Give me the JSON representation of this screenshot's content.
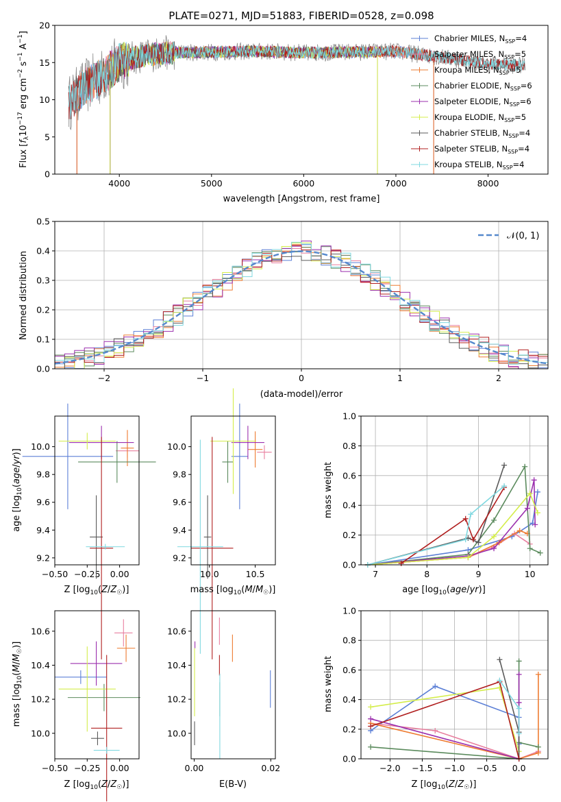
{
  "figure": {
    "title": "PLATE=0271, MJD=51883, FIBERID=0528, z=0.098"
  },
  "colors": {
    "chabrier_miles": "#5b7fd6",
    "salpeter_miles": "#e87e9e",
    "kroupa_miles": "#ee7b30",
    "chabrier_elodie": "#5a8a5c",
    "salpeter_elodie": "#9b2fae",
    "kroupa_elodie": "#d4ed4a",
    "chabrier_stelib": "#5a5a5a",
    "salpeter_stelib": "#b01f1f",
    "kroupa_stelib": "#7fd8e0",
    "normal": "#5588cc",
    "grid": "#b0b0b0",
    "spectrum": "#8a8a8a"
  },
  "chart_data": [
    {
      "id": "spectrum",
      "type": "line",
      "xlabel": "wavelength [Angstrom, rest frame]",
      "ylabel": "Flux [fλ10⁻¹⁷ erg cm⁻² s⁻¹ A⁻¹]",
      "xlim": [
        3300,
        8650
      ],
      "ylim": [
        0,
        20
      ],
      "xticks": [
        4000,
        5000,
        6000,
        7000,
        8000
      ],
      "yticks": [
        0,
        5,
        10,
        15,
        20
      ],
      "grid": false,
      "legend_position": "top-right",
      "legend": [
        "Chabrier MILES, N_SSP=4",
        "Salpeter MILES, N_SSP=5",
        "Kroupa MILES, N_SSP=5",
        "Chabrier ELODIE, N_SSP=6",
        "Salpeter ELODIE, N_SSP=6",
        "Kroupa ELODIE, N_SSP=5",
        "Chabrier STELIB, N_SSP=4",
        "Salpeter STELIB, N_SSP=4",
        "Kroupa STELIB, N_SSP=4"
      ],
      "legend_main": [
        "Chabrier MILES, N",
        "Salpeter MILES, N",
        "Kroupa MILES, N",
        "Chabrier ELODIE, N",
        "Salpeter ELODIE, N",
        "Kroupa ELODIE, N",
        "Chabrier STELIB, N",
        "Salpeter STELIB, N",
        "Kroupa STELIB, N"
      ],
      "legend_sub": [
        "SSP",
        "SSP",
        "SSP",
        "SSP",
        "SSP",
        "SSP",
        "SSP",
        "SSP",
        "SSP"
      ],
      "legend_tail": [
        "=4",
        "=5",
        "=5",
        "=6",
        "=6",
        "=5",
        "=4",
        "=4",
        "=4"
      ],
      "continuum": {
        "x": [
          3450,
          3600,
          3800,
          4000,
          4200,
          4500,
          5000,
          5500,
          6000,
          6500,
          7000,
          7500,
          8000,
          8400
        ],
        "y": [
          9.5,
          11.5,
          13.0,
          15.0,
          15.8,
          16.3,
          16.4,
          16.5,
          16.3,
          16.4,
          16.5,
          15.7,
          14.8,
          14.6
        ]
      },
      "series_ranges": {
        "full": [
          3450,
          8400
        ],
        "ELODIE": [
          3900,
          6800
        ],
        "MILES": [
          3540,
          7410
        ]
      }
    },
    {
      "id": "residual_hist",
      "type": "histogram",
      "xlabel": "(data-model)/error",
      "ylabel": "Normed distribution",
      "xlim": [
        -2.5,
        2.5
      ],
      "ylim": [
        0,
        0.5
      ],
      "xticks": [
        -2,
        -1,
        0,
        1,
        2
      ],
      "yticks": [
        0.0,
        0.1,
        0.2,
        0.3,
        0.4,
        0.5
      ],
      "grid": true,
      "bin_edges_start": -2.5,
      "bin_width": 0.1,
      "legend_position": "top-right",
      "normal_curve_label": "𝒩(0, 1)",
      "normal": {
        "mean": 0,
        "sigma": 1
      }
    },
    {
      "id": "age_vs_Z",
      "type": "errorbar",
      "xlabel": "Z [log₁₀(Z/Z☉)]",
      "ylabel": "age  [log₁₀(age/yr)]",
      "xlim": [
        -0.5,
        0.15
      ],
      "ylim": [
        9.15,
        10.22
      ],
      "xticks": [
        -0.5,
        -0.25,
        0.0
      ],
      "xticklabels": [
        "−0.50",
        "−0.25",
        "0.00"
      ],
      "yticks": [
        9.2,
        9.4,
        9.6,
        9.8,
        10.0
      ],
      "grid": false,
      "points": [
        {
          "model": "chabrier_miles",
          "x": -0.4,
          "y": 9.93,
          "xerr": 0.35,
          "yerr": 0.38
        },
        {
          "model": "salpeter_miles",
          "x": 0.06,
          "y": 9.97,
          "xerr": 0.09,
          "yerr": 0.05
        },
        {
          "model": "kroupa_miles",
          "x": 0.06,
          "y": 9.99,
          "xerr": 0.05,
          "yerr": 0.13
        },
        {
          "model": "chabrier_elodie",
          "x": -0.02,
          "y": 9.89,
          "xerr": 0.3,
          "yerr": 0.15
        },
        {
          "model": "salpeter_elodie",
          "x": -0.14,
          "y": 10.03,
          "xerr": 0.25,
          "yerr": 0.12
        },
        {
          "model": "kroupa_elodie",
          "x": -0.25,
          "y": 10.04,
          "xerr": 0.22,
          "yerr": 0.06
        },
        {
          "model": "chabrier_stelib",
          "x": -0.18,
          "y": 9.35,
          "xerr": 0.05,
          "yerr": 0.3
        },
        {
          "model": "salpeter_stelib",
          "x": -0.14,
          "y": 9.27,
          "xerr": 0.09,
          "yerr": 0.8
        },
        {
          "model": "kroupa_stelib",
          "x": -0.11,
          "y": 9.28,
          "xerr": 0.15,
          "yerr": 0.02
        }
      ]
    },
    {
      "id": "age_vs_mass",
      "type": "errorbar",
      "xlabel": "mass [log₁₀(M/M☉)]",
      "ylabel": "",
      "xlim": [
        9.8,
        10.72
      ],
      "ylim": [
        9.15,
        10.22
      ],
      "xticks": [
        10.0,
        10.5
      ],
      "xticklabels": [
        "10.0",
        "10.5"
      ],
      "yticks": [
        9.2,
        9.4,
        9.6,
        9.8,
        10.0
      ],
      "grid": false,
      "points": [
        {
          "model": "chabrier_miles",
          "x": 10.33,
          "y": 9.93,
          "xerr": 0.09,
          "yerr": 0.38
        },
        {
          "model": "salpeter_miles",
          "x": 10.6,
          "y": 9.96,
          "xerr": 0.08,
          "yerr": 0.05
        },
        {
          "model": "kroupa_miles",
          "x": 10.5,
          "y": 9.98,
          "xerr": 0.08,
          "yerr": 0.13
        },
        {
          "model": "chabrier_elodie",
          "x": 10.2,
          "y": 9.89,
          "xerr": 0.06,
          "yerr": 0.15
        },
        {
          "model": "salpeter_elodie",
          "x": 10.42,
          "y": 10.03,
          "xerr": 0.18,
          "yerr": 0.12
        },
        {
          "model": "kroupa_elodie",
          "x": 10.26,
          "y": 10.04,
          "xerr": 0.25,
          "yerr": 0.38
        },
        {
          "model": "chabrier_stelib",
          "x": 9.98,
          "y": 9.35,
          "xerr": 0.04,
          "yerr": 0.3
        },
        {
          "model": "salpeter_stelib",
          "x": 10.03,
          "y": 9.27,
          "xerr": 0.23,
          "yerr": 0.8
        },
        {
          "model": "kroupa_stelib",
          "x": 9.9,
          "y": 9.28,
          "xerr": 0.25,
          "yerr": 0.77
        }
      ]
    },
    {
      "id": "weight_vs_age",
      "type": "line",
      "xlabel": "age  [log₁₀(age/yr)]",
      "ylabel": "mass weight",
      "xlim": [
        6.72,
        10.35
      ],
      "ylim": [
        0,
        1
      ],
      "xticks": [
        7,
        8,
        9,
        10
      ],
      "yticks": [
        0.0,
        0.2,
        0.4,
        0.6,
        0.8,
        1.0
      ],
      "grid": true,
      "series": [
        {
          "model": "chabrier_miles",
          "x": [
            6.85,
            8.8,
            9.65,
            10.05,
            10.15
          ],
          "y": [
            0.0,
            0.1,
            0.19,
            0.28,
            0.49
          ]
        },
        {
          "model": "salpeter_miles",
          "x": [
            6.85,
            8.8,
            9.3,
            9.7,
            10.0
          ],
          "y": [
            0.0,
            0.05,
            0.12,
            0.21,
            0.14
          ]
        },
        {
          "model": "kroupa_miles",
          "x": [
            6.85,
            8.8,
            9.4,
            9.8,
            9.95
          ],
          "y": [
            0.0,
            0.05,
            0.15,
            0.23,
            0.21
          ]
        },
        {
          "model": "chabrier_elodie",
          "x": [
            6.85,
            8.8,
            9.3,
            9.9,
            10.0,
            10.2
          ],
          "y": [
            0.0,
            0.07,
            0.3,
            0.66,
            0.11,
            0.08
          ]
        },
        {
          "model": "salpeter_elodie",
          "x": [
            6.85,
            8.8,
            9.3,
            9.95,
            10.08,
            10.1
          ],
          "y": [
            0.0,
            0.06,
            0.11,
            0.38,
            0.57,
            0.27
          ]
        },
        {
          "model": "kroupa_elodie",
          "x": [
            6.85,
            8.8,
            9.3,
            10.0,
            10.15
          ],
          "y": [
            0.0,
            0.05,
            0.19,
            0.48,
            0.35
          ]
        },
        {
          "model": "chabrier_stelib",
          "x": [
            6.85,
            8.8,
            9.0,
            9.5
          ],
          "y": [
            0.0,
            0.18,
            0.15,
            0.67
          ]
        },
        {
          "model": "salpeter_stelib",
          "x": [
            7.5,
            8.75,
            8.9,
            9.5
          ],
          "y": [
            0.01,
            0.31,
            0.17,
            0.52
          ]
        },
        {
          "model": "kroupa_stelib",
          "x": [
            6.85,
            8.75,
            8.85,
            9.5
          ],
          "y": [
            0.0,
            0.17,
            0.34,
            0.53
          ]
        }
      ]
    },
    {
      "id": "mass_vs_Z",
      "type": "errorbar",
      "xlabel": "Z [log₁₀(Z/Z☉)]",
      "ylabel": "mass [log₁₀(M/M☉)]",
      "xlim": [
        -0.5,
        0.15
      ],
      "ylim": [
        9.85,
        10.72
      ],
      "xticks": [
        -0.5,
        -0.25,
        0.0
      ],
      "xticklabels": [
        "−0.50",
        "−0.25",
        "0.00"
      ],
      "yticks": [
        10.0,
        10.2,
        10.4,
        10.6
      ],
      "grid": false,
      "points": [
        {
          "model": "chabrier_miles",
          "x": -0.3,
          "y": 10.33,
          "xerr": 0.2,
          "yerr": 0.04
        },
        {
          "model": "salpeter_miles",
          "x": 0.03,
          "y": 10.59,
          "xerr": 0.07,
          "yerr": 0.08
        },
        {
          "model": "kroupa_miles",
          "x": 0.05,
          "y": 10.5,
          "xerr": 0.07,
          "yerr": 0.08
        },
        {
          "model": "chabrier_elodie",
          "x": -0.12,
          "y": 10.21,
          "xerr": 0.28,
          "yerr": 0.08
        },
        {
          "model": "salpeter_elodie",
          "x": -0.18,
          "y": 10.41,
          "xerr": 0.2,
          "yerr": 0.13
        },
        {
          "model": "kroupa_elodie",
          "x": -0.25,
          "y": 10.26,
          "xerr": 0.22,
          "yerr": 0.25
        },
        {
          "model": "chabrier_stelib",
          "x": -0.17,
          "y": 9.97,
          "xerr": 0.05,
          "yerr": 0.04
        },
        {
          "model": "salpeter_stelib",
          "x": -0.1,
          "y": 10.03,
          "xerr": 0.12,
          "yerr": 0.43
        },
        {
          "model": "kroupa_stelib",
          "x": -0.1,
          "y": 9.9,
          "xerr": 0.1,
          "yerr": 0.02
        }
      ]
    },
    {
      "id": "mass_vs_ebv",
      "type": "errorbar",
      "xlabel": "E(B-V)",
      "ylabel": "",
      "xlim": [
        -0.0008,
        0.0212
      ],
      "ylim": [
        9.85,
        10.72
      ],
      "xticks": [
        0.0,
        0.02
      ],
      "xticklabels": [
        "0.00",
        "0.02"
      ],
      "yticks": [
        10.0,
        10.2,
        10.4,
        10.6
      ],
      "grid": false,
      "points": [
        {
          "model": "chabrier_miles",
          "x": 0.0199,
          "y": 10.26,
          "xerr": 0,
          "yerr": 0.11
        },
        {
          "model": "salpeter_miles",
          "x": 0.0066,
          "y": 10.6,
          "xerr": 0,
          "yerr": 0.08
        },
        {
          "model": "kroupa_miles",
          "x": 0.01,
          "y": 10.5,
          "xerr": 0,
          "yerr": 0.08
        },
        {
          "model": "chabrier_elodie",
          "x": 0.0067,
          "y": 10.2,
          "xerr": 0,
          "yerr": 0.1
        },
        {
          "model": "salpeter_elodie",
          "x": 0.0002,
          "y": 10.52,
          "xerr": 0,
          "yerr": 0.02
        },
        {
          "model": "kroupa_elodie",
          "x": 0.0001,
          "y": 10.3,
          "xerr": 0,
          "yerr": 0.2
        },
        {
          "model": "chabrier_stelib",
          "x": 0.0001,
          "y": 10.0,
          "xerr": 0,
          "yerr": 0.07
        },
        {
          "model": "salpeter_stelib",
          "x": 0.0066,
          "y": 10.4,
          "xerr": 0,
          "yerr": 0.06
        },
        {
          "model": "kroupa_stelib",
          "x": 0.0067,
          "y": 10.1,
          "xerr": 0,
          "yerr": 0.25
        }
      ]
    },
    {
      "id": "weight_vs_Z",
      "type": "line",
      "xlabel": "Z [log₁₀(Z/Z☉)]",
      "ylabel": "mass weight",
      "xlim": [
        -2.45,
        0.45
      ],
      "ylim": [
        0,
        1
      ],
      "xticks": [
        -2.0,
        -1.5,
        -1.0,
        -0.5,
        0.0
      ],
      "xticklabels": [
        "−2.0",
        "−1.5",
        "−1.0",
        "−0.5",
        "0.0"
      ],
      "yticks": [
        0.0,
        0.2,
        0.4,
        0.6,
        0.8,
        1.0
      ],
      "grid": true,
      "series": [
        {
          "model": "chabrier_miles",
          "x": [
            -2.3,
            -1.3,
            0.0,
            0.0,
            0.0
          ],
          "y": [
            0.19,
            0.49,
            0.28,
            0.1,
            0.0
          ]
        },
        {
          "model": "salpeter_miles",
          "x": [
            -2.3,
            -1.3,
            0.0,
            0.3
          ],
          "y": [
            0.24,
            0.19,
            0.0,
            0.05
          ]
        },
        {
          "model": "kroupa_miles",
          "x": [
            -2.3,
            0.0,
            0.3,
            0.3
          ],
          "y": [
            0.24,
            0.0,
            0.04,
            0.57
          ]
        },
        {
          "model": "chabrier_elodie",
          "x": [
            -2.3,
            0.0,
            0.0,
            0.0,
            0.3
          ],
          "y": [
            0.08,
            0.0,
            0.66,
            0.11,
            0.08
          ]
        },
        {
          "model": "salpeter_elodie",
          "x": [
            -2.3,
            0.0,
            0.0,
            0.0
          ],
          "y": [
            0.27,
            0.0,
            0.57,
            0.38
          ]
        },
        {
          "model": "kroupa_elodie",
          "x": [
            -2.3,
            -0.3,
            0.0,
            0.0
          ],
          "y": [
            0.35,
            0.48,
            0.05,
            0.0
          ]
        },
        {
          "model": "chabrier_stelib",
          "x": [
            -0.3,
            0.0,
            0.0
          ],
          "y": [
            0.67,
            0.18,
            0.0
          ]
        },
        {
          "model": "salpeter_stelib",
          "x": [
            -2.3,
            -0.3,
            0.0
          ],
          "y": [
            0.22,
            0.52,
            0.0
          ]
        },
        {
          "model": "kroupa_stelib",
          "x": [
            -0.3,
            0.0,
            0.0
          ],
          "y": [
            0.53,
            0.34,
            0.17
          ]
        }
      ]
    }
  ]
}
